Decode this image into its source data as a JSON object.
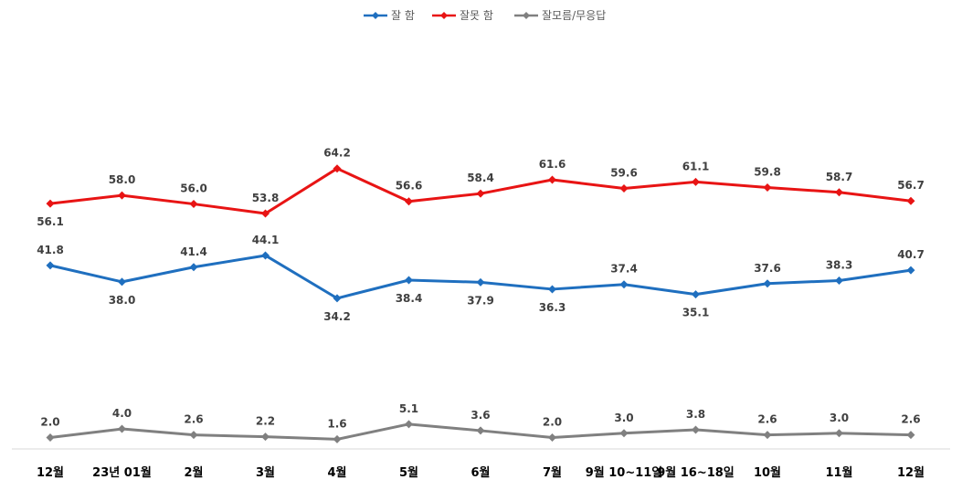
{
  "chart_data": {
    "type": "line",
    "categories": [
      "12월",
      "23년 01월",
      "2월",
      "3월",
      "4월",
      "5월",
      "6월",
      "7월",
      "9월 10~11일",
      "9월 16~18일",
      "10월",
      "11월",
      "12월"
    ],
    "series": [
      {
        "name": "잘 함",
        "color": "#1F6FBF",
        "values": [
          41.8,
          38.0,
          41.4,
          44.1,
          34.2,
          38.4,
          37.9,
          36.3,
          37.4,
          35.1,
          37.6,
          38.3,
          40.7
        ]
      },
      {
        "name": "잘못 함",
        "color": "#E81414",
        "values": [
          56.1,
          58.0,
          56.0,
          53.8,
          64.2,
          56.6,
          58.4,
          61.6,
          59.6,
          61.1,
          59.8,
          58.7,
          56.7
        ]
      },
      {
        "name": "잘모름/무응답",
        "color": "#808080",
        "values": [
          2.0,
          4.0,
          2.6,
          2.2,
          1.6,
          5.1,
          3.6,
          2.0,
          3.0,
          3.8,
          2.6,
          3.0,
          2.6
        ]
      }
    ],
    "label_format": "0.0",
    "grid": false,
    "legend_position": "top"
  }
}
